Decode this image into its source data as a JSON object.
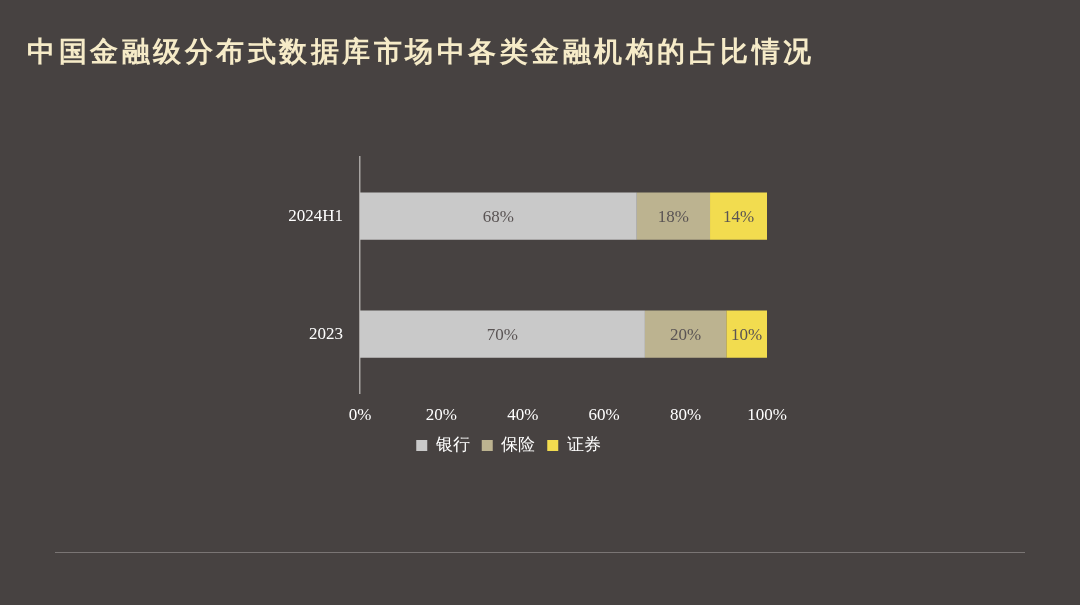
{
  "chart_data": {
    "type": "bar",
    "title": "中国金融级分布式数据库市场中各类金融机构的占比情况",
    "orientation": "horizontal",
    "stacked": true,
    "categories": [
      "2024H1",
      "2023"
    ],
    "series": [
      {
        "name": "银行",
        "color": "#c9c9c9",
        "values": [
          68,
          70
        ],
        "value_labels": [
          "68%",
          "70%"
        ]
      },
      {
        "name": "保险",
        "color": "#bcb390",
        "values": [
          18,
          20
        ],
        "value_labels": [
          "18%",
          "20%"
        ]
      },
      {
        "name": "证券",
        "color": "#f2dc4f",
        "values": [
          14,
          10
        ],
        "value_labels": [
          "14%",
          "10%"
        ]
      }
    ],
    "xlim": [
      0,
      100
    ],
    "xticks": [
      {
        "value": 0,
        "label": "0%"
      },
      {
        "value": 20,
        "label": "20%"
      },
      {
        "value": 40,
        "label": "40%"
      },
      {
        "value": 60,
        "label": "60%"
      },
      {
        "value": 80,
        "label": "80%"
      },
      {
        "value": 100,
        "label": "100%"
      }
    ],
    "grid": false,
    "legend": "bottom"
  }
}
